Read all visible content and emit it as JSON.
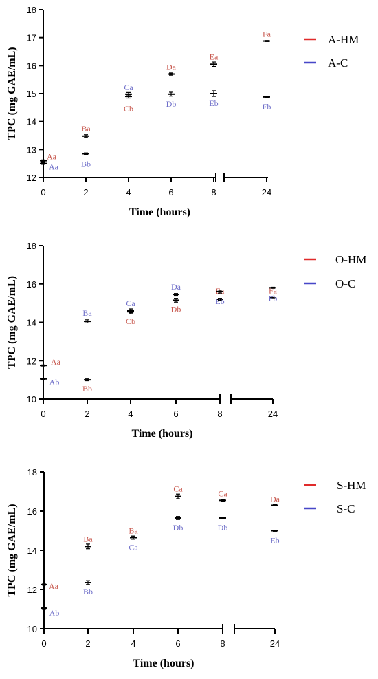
{
  "colors": {
    "hm": "#e02b2b",
    "c": "#4747c8",
    "hm_text": "#c85a50",
    "c_text": "#6f6fc9"
  },
  "chart_data": [
    {
      "type": "scatter",
      "xlabel": "Time (hours)",
      "ylabel": "TPC (mg GAE/mL)",
      "ylim": [
        12,
        18
      ],
      "yticks": [
        "12",
        "13",
        "14",
        "15",
        "16",
        "17",
        "18"
      ],
      "xticks": [
        "0",
        "2",
        "4",
        "6",
        "8",
        "24"
      ],
      "x": [
        0,
        2,
        4,
        6,
        8,
        24
      ],
      "legend": "top-right",
      "series": [
        {
          "name": "A-HM",
          "color": "#e02b2b",
          "values": [
            12.6,
            13.48,
            14.9,
            15.7,
            16.05,
            16.88
          ],
          "errors": [
            0.03,
            0.05,
            0.06,
            0.04,
            0.08,
            0.02
          ],
          "letters": [
            "Aa",
            "Ba",
            "Cb",
            "Da",
            "Ea",
            "Fa"
          ]
        },
        {
          "name": "A-C",
          "color": "#4747c8",
          "values": [
            12.5,
            12.85,
            14.98,
            14.98,
            15.0,
            14.88
          ],
          "errors": [
            0.03,
            0.03,
            0.06,
            0.07,
            0.1,
            0.02
          ],
          "letters": [
            "Aa",
            "Bb",
            "Ca",
            "Db",
            "Eb",
            "Fb"
          ]
        }
      ]
    },
    {
      "type": "scatter",
      "xlabel": "Time (hours)",
      "ylabel": "TPC (mg GAE/mL)",
      "ylim": [
        10,
        18
      ],
      "yticks": [
        "10",
        "12",
        "14",
        "16",
        "18"
      ],
      "xticks": [
        "0",
        "2",
        "4",
        "6",
        "8",
        "24"
      ],
      "x": [
        0,
        2,
        4,
        6,
        8,
        24
      ],
      "legend": "top-right",
      "series": [
        {
          "name": "O-HM",
          "color": "#e02b2b",
          "values": [
            11.75,
            11.0,
            14.55,
            15.15,
            15.2,
            15.3
          ],
          "errors": [
            0.03,
            0.05,
            0.1,
            0.1,
            0.05,
            0.03
          ],
          "letters": [
            "Aa",
            "Bb",
            "Cb",
            "Db",
            "Ea",
            "Fa"
          ]
        },
        {
          "name": "O-C",
          "color": "#4747c8",
          "values": [
            11.05,
            14.05,
            14.6,
            15.45,
            15.6,
            15.8
          ],
          "errors": [
            0.03,
            0.08,
            0.1,
            0.05,
            0.08,
            0.03
          ],
          "letters": [
            "Ab",
            "Ba",
            "Ca",
            "Da",
            "Eb",
            "Fb"
          ]
        }
      ]
    },
    {
      "type": "scatter",
      "xlabel": "Time (hours)",
      "ylabel": "TPC (mg GAE/mL)",
      "ylim": [
        10,
        18
      ],
      "yticks": [
        "10",
        "12",
        "14",
        "16",
        "18"
      ],
      "xticks": [
        "0",
        "2",
        "4",
        "6",
        "8",
        "24"
      ],
      "x": [
        0,
        2,
        4,
        6,
        8,
        24
      ],
      "legend": "top-right",
      "series": [
        {
          "name": "S-HM",
          "color": "#e02b2b",
          "values": [
            12.25,
            14.2,
            14.65,
            16.75,
            16.55,
            16.3
          ],
          "errors": [
            0.03,
            0.12,
            0.08,
            0.12,
            0.04,
            0.03
          ],
          "letters": [
            "Aa",
            "Ba",
            "Ba",
            "Ca",
            "Ca",
            "Da"
          ]
        },
        {
          "name": "S-C",
          "color": "#4747c8",
          "values": [
            11.05,
            12.35,
            14.65,
            15.65,
            15.65,
            15.0
          ],
          "errors": [
            0.03,
            0.1,
            0.08,
            0.08,
            0.03,
            0.03
          ],
          "letters": [
            "Ab",
            "Bb",
            "Ca",
            "Db",
            "Db",
            "Eb"
          ]
        }
      ]
    }
  ]
}
